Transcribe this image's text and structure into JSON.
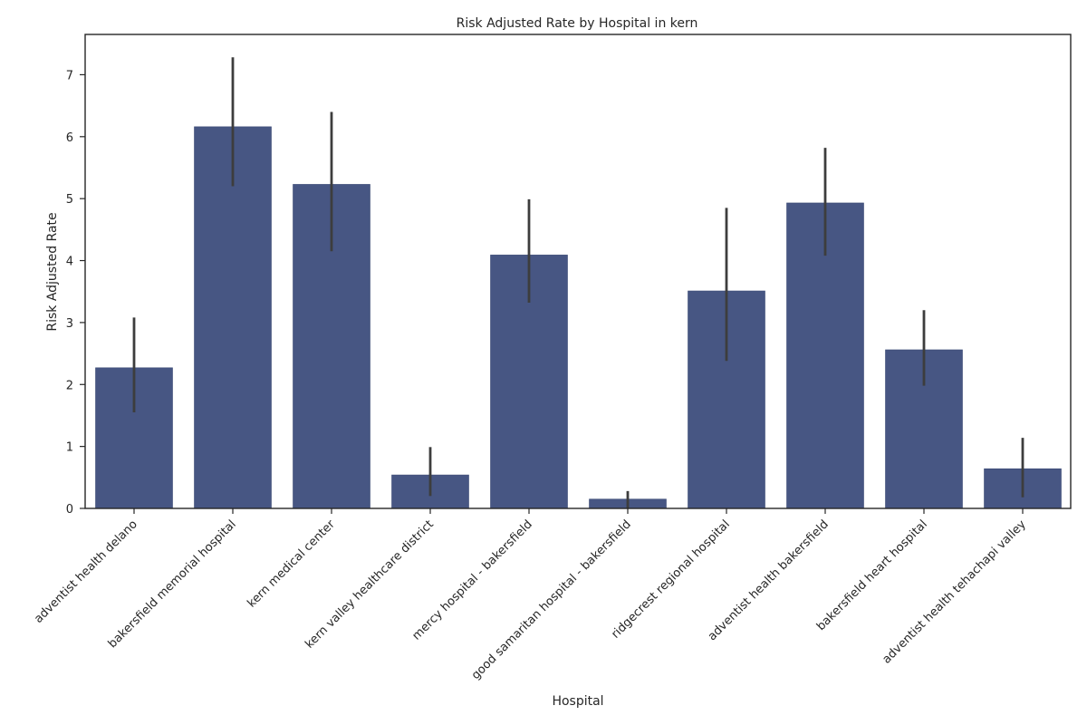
{
  "chart_data": {
    "type": "bar",
    "title": "Risk Adjusted Rate by Hospital in kern",
    "xlabel": "Hospital",
    "ylabel": "Risk Adjusted Rate",
    "ylim": [
      0,
      7.65
    ],
    "yticks": [
      0,
      1,
      2,
      3,
      4,
      5,
      6,
      7
    ],
    "grid": false,
    "legend": "none",
    "bar_color": "#475683",
    "error_color": "#3d3d3d",
    "categories": [
      "adventist health delano",
      "bakersfield memorial hospital",
      "kern medical center",
      "kern valley healthcare district",
      "mercy hospital - bakersfield",
      "good samaritan hospital - bakersfield",
      "ridgecrest regional hospital",
      "adventist health bakersfield",
      "bakersfield heart hospital",
      "adventist health tehachapi valley"
    ],
    "values": [
      2.27,
      6.16,
      5.23,
      0.54,
      4.09,
      0.15,
      3.51,
      4.93,
      2.56,
      0.64
    ],
    "error_low": [
      1.55,
      5.2,
      4.15,
      0.2,
      3.32,
      0.0,
      2.38,
      4.08,
      1.98,
      0.18
    ],
    "error_high": [
      3.08,
      7.28,
      6.4,
      0.99,
      4.99,
      0.28,
      4.85,
      5.82,
      3.2,
      1.14
    ]
  }
}
